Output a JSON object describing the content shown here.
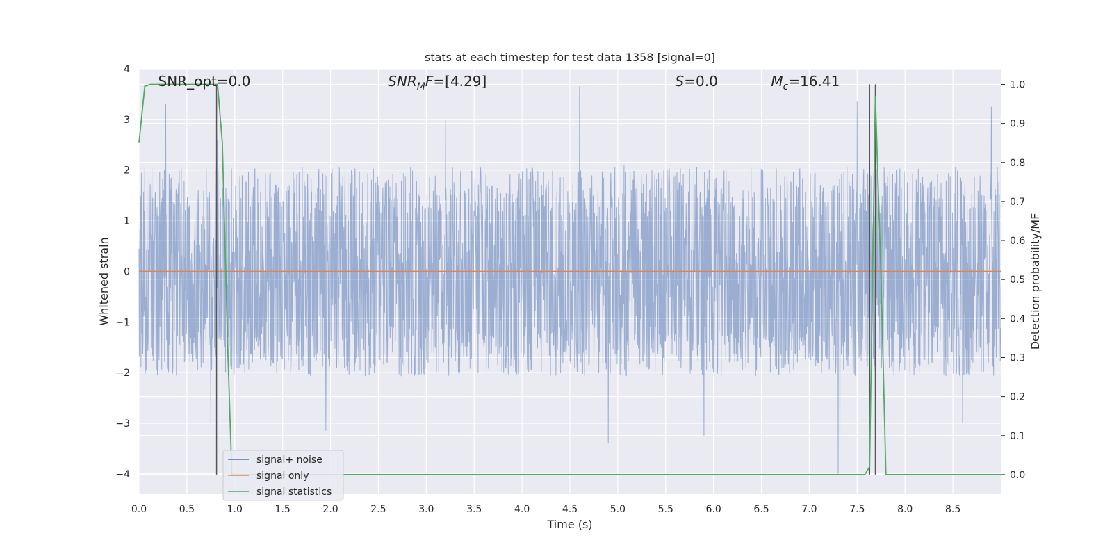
{
  "chart_data": {
    "type": "line",
    "title": "stats at each timestep for test data 1358 [signal=0]",
    "xlabel": "Time (s)",
    "ylabel": "Whitened strain",
    "y2label": "Detection probability/MF",
    "xlim": [
      0.0,
      9.0
    ],
    "ylim": [
      -4.4,
      4.0
    ],
    "y2lim": [
      -0.05,
      1.04
    ],
    "x_ticks": [
      0.0,
      0.5,
      1.0,
      1.5,
      2.0,
      2.5,
      3.0,
      3.5,
      4.0,
      4.5,
      5.0,
      5.5,
      6.0,
      6.5,
      7.0,
      7.5,
      8.0,
      8.5
    ],
    "x_tick_labels": [
      "0.0",
      "0.5",
      "1.0",
      "1.5",
      "2.0",
      "2.5",
      "3.0",
      "3.5",
      "4.0",
      "4.5",
      "5.0",
      "5.5",
      "6.0",
      "6.5",
      "7.0",
      "7.5",
      "8.0",
      "8.5"
    ],
    "y_ticks": [
      -4,
      -3,
      -2,
      -1,
      0,
      1,
      2,
      3,
      4
    ],
    "y_tick_labels": [
      "−4",
      "−3",
      "−2",
      "−1",
      "0",
      "1",
      "2",
      "3",
      "4"
    ],
    "y2_ticks": [
      0.0,
      0.1,
      0.2,
      0.3,
      0.4,
      0.5,
      0.6,
      0.7,
      0.8,
      0.9,
      1.0
    ],
    "y2_tick_labels": [
      "0.0",
      "0.1",
      "0.2",
      "0.3",
      "0.4",
      "0.5",
      "0.6",
      "0.7",
      "0.8",
      "0.9",
      "1.0"
    ],
    "grid": true,
    "legend_position": "lower-left",
    "annotations": [
      {
        "text": "SNR_opt=0.0",
        "x": 0.2
      },
      {
        "text": "SNR_MF=[4.29]",
        "x": 2.6
      },
      {
        "text": "S=0.0",
        "x": 5.6
      },
      {
        "text": "M_c=16.41",
        "x": 6.6
      }
    ],
    "vlines_x": [
      0.81,
      7.63,
      7.69
    ],
    "series": [
      {
        "name": "signal+ noise",
        "color": "#4c72b0",
        "kind": "noise",
        "axis": "left",
        "amplitude_typical": [
          -1.8,
          1.8
        ],
        "peaks": [
          {
            "x": 0.28,
            "y": 3.3
          },
          {
            "x": 0.82,
            "y": 2.6
          },
          {
            "x": 4.6,
            "y": 3.65
          },
          {
            "x": 3.2,
            "y": 3.0
          },
          {
            "x": 7.5,
            "y": 3.35
          },
          {
            "x": 8.9,
            "y": 3.25
          },
          {
            "x": 0.75,
            "y": -3.05
          },
          {
            "x": 1.95,
            "y": -3.15
          },
          {
            "x": 4.9,
            "y": -3.4
          },
          {
            "x": 5.9,
            "y": -3.25
          },
          {
            "x": 7.3,
            "y": -4.0
          },
          {
            "x": 7.32,
            "y": -3.5
          },
          {
            "x": 8.6,
            "y": -3.0
          }
        ]
      },
      {
        "name": "signal only",
        "color": "#dd8452",
        "axis": "left",
        "x": [
          0.0,
          9.0
        ],
        "y": [
          0.0,
          0.0
        ]
      },
      {
        "name": "signal statistics",
        "color": "#55a868",
        "axis": "right",
        "x": [
          0.0,
          0.06,
          0.12,
          0.2,
          0.5,
          0.82,
          0.87,
          0.93,
          0.97,
          1.0,
          7.58,
          7.63,
          7.69,
          7.75,
          7.8,
          9.0
        ],
        "y": [
          0.85,
          0.995,
          1.0,
          1.0,
          1.0,
          1.0,
          0.85,
          0.3,
          0.0,
          0.0,
          0.0,
          0.02,
          0.97,
          0.5,
          0.0,
          0.0
        ]
      }
    ]
  }
}
